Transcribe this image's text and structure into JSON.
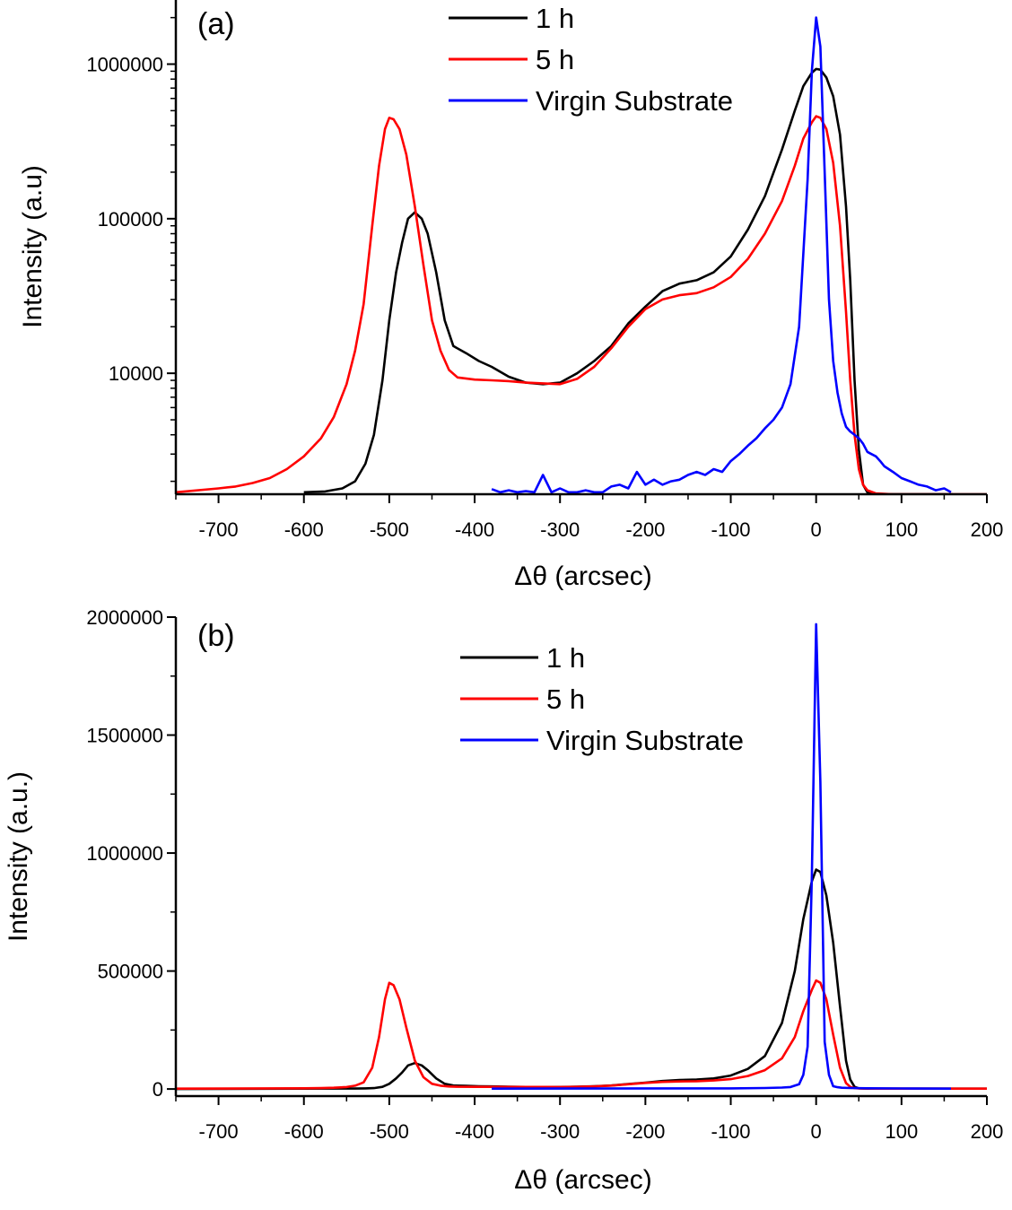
{
  "chart_data": [
    {
      "type": "line",
      "panel_label": "(a)",
      "xlabel": "Δθ (arcsec)",
      "ylabel": "Intensity (a.u)",
      "yscale": "log",
      "xlim": [
        -750,
        200
      ],
      "ylim": [
        1650,
        2600000
      ],
      "xticks": [
        -700,
        -600,
        -500,
        -400,
        -300,
        -200,
        -100,
        0,
        100,
        200
      ],
      "yticks": [
        10000,
        100000,
        1000000
      ],
      "ytick_labels": [
        "10000",
        "100000",
        "1000000"
      ],
      "grid": false,
      "legend_position": "top-center",
      "series": [
        {
          "name": "1 h",
          "color": "#000000",
          "x": [
            -600,
            -575,
            -555,
            -540,
            -528,
            -518,
            -508,
            -500,
            -492,
            -485,
            -478,
            -470,
            -462,
            -455,
            -445,
            -435,
            -425,
            -410,
            -395,
            -380,
            -360,
            -340,
            -320,
            -300,
            -280,
            -260,
            -240,
            -220,
            -200,
            -180,
            -160,
            -140,
            -120,
            -100,
            -80,
            -60,
            -40,
            -25,
            -15,
            -5,
            0,
            5,
            12,
            20,
            28,
            35,
            40,
            45,
            50,
            55,
            60,
            70,
            90,
            110,
            130,
            160
          ],
          "y": [
            1700,
            1720,
            1800,
            2000,
            2600,
            4000,
            9000,
            22000,
            45000,
            70000,
            100000,
            110000,
            100000,
            80000,
            45000,
            22000,
            15000,
            13500,
            12000,
            11000,
            9500,
            8700,
            8500,
            8700,
            10000,
            12000,
            15000,
            21000,
            27000,
            34000,
            38000,
            40000,
            45000,
            57000,
            85000,
            140000,
            280000,
            500000,
            720000,
            880000,
            930000,
            920000,
            820000,
            620000,
            350000,
            120000,
            40000,
            9000,
            3200,
            1900,
            1700,
            1650,
            1650,
            1650,
            1650,
            1650
          ]
        },
        {
          "name": "5 h",
          "color": "#ff0000",
          "x": [
            -750,
            -700,
            -680,
            -660,
            -640,
            -620,
            -600,
            -580,
            -565,
            -550,
            -540,
            -530,
            -520,
            -512,
            -505,
            -500,
            -495,
            -488,
            -480,
            -470,
            -460,
            -450,
            -440,
            -430,
            -420,
            -400,
            -380,
            -360,
            -340,
            -320,
            -300,
            -280,
            -260,
            -240,
            -220,
            -200,
            -180,
            -160,
            -140,
            -120,
            -100,
            -80,
            -60,
            -40,
            -25,
            -15,
            -5,
            0,
            5,
            12,
            20,
            28,
            35,
            40,
            45,
            50,
            55,
            60,
            70,
            90,
            110,
            130,
            160,
            200
          ],
          "y": [
            1700,
            1800,
            1850,
            1950,
            2100,
            2400,
            2900,
            3800,
            5200,
            8500,
            14000,
            28000,
            90000,
            220000,
            380000,
            450000,
            440000,
            380000,
            260000,
            120000,
            50000,
            22000,
            14000,
            10500,
            9400,
            9100,
            9000,
            8900,
            8700,
            8600,
            8500,
            9200,
            11000,
            14500,
            20000,
            26000,
            30000,
            32000,
            33000,
            36000,
            42000,
            55000,
            80000,
            130000,
            220000,
            330000,
            420000,
            460000,
            450000,
            380000,
            230000,
            90000,
            25000,
            9000,
            4000,
            2400,
            1900,
            1750,
            1670,
            1650,
            1650,
            1650,
            1650,
            1650
          ]
        },
        {
          "name": "Virgin Substrate",
          "color": "#0000ff",
          "x": [
            -380,
            -370,
            -360,
            -350,
            -340,
            -330,
            -320,
            -310,
            -300,
            -290,
            -280,
            -270,
            -260,
            -250,
            -240,
            -230,
            -220,
            -210,
            -200,
            -190,
            -180,
            -170,
            -160,
            -150,
            -140,
            -130,
            -120,
            -110,
            -100,
            -90,
            -80,
            -70,
            -60,
            -50,
            -40,
            -30,
            -20,
            -10,
            -5,
            0,
            5,
            10,
            15,
            20,
            25,
            30,
            35,
            40,
            45,
            50,
            55,
            60,
            65,
            70,
            75,
            80,
            90,
            100,
            110,
            120,
            130,
            140,
            150,
            158
          ],
          "y": [
            1780,
            1700,
            1750,
            1700,
            1730,
            1700,
            2200,
            1700,
            1800,
            1700,
            1700,
            1750,
            1700,
            1700,
            1850,
            1900,
            1800,
            2300,
            1900,
            2050,
            1900,
            2000,
            2050,
            2200,
            2300,
            2200,
            2400,
            2300,
            2700,
            3000,
            3400,
            3800,
            4400,
            5000,
            6000,
            8500,
            20000,
            180000,
            900000,
            2000000,
            1300000,
            200000,
            30000,
            12000,
            7500,
            5500,
            4500,
            4200,
            4000,
            3800,
            3500,
            3100,
            3000,
            2900,
            2700,
            2500,
            2300,
            2100,
            2000,
            1900,
            1850,
            1750,
            1800,
            1700
          ]
        }
      ]
    },
    {
      "type": "line",
      "panel_label": "(b)",
      "xlabel": "Δθ (arcsec)",
      "ylabel": "Intensity (a.u.)",
      "yscale": "linear",
      "xlim": [
        -750,
        200
      ],
      "ylim": [
        -30000,
        2000000
      ],
      "xticks": [
        -700,
        -600,
        -500,
        -400,
        -300,
        -200,
        -100,
        0,
        100,
        200
      ],
      "yticks": [
        0,
        500000,
        1000000,
        1500000,
        2000000
      ],
      "ytick_labels": [
        "0",
        "500000",
        "1000000",
        "1500000",
        "2000000"
      ],
      "grid": false,
      "legend_position": "top-center",
      "series": [
        {
          "name": "1 h",
          "color": "#000000",
          "x": [
            -750,
            -600,
            -560,
            -540,
            -528,
            -518,
            -508,
            -500,
            -492,
            -485,
            -478,
            -470,
            -462,
            -455,
            -445,
            -435,
            -425,
            -410,
            -395,
            -380,
            -360,
            -340,
            -320,
            -300,
            -280,
            -260,
            -240,
            -220,
            -200,
            -180,
            -160,
            -140,
            -120,
            -100,
            -80,
            -60,
            -40,
            -25,
            -15,
            -5,
            0,
            5,
            12,
            20,
            28,
            35,
            40,
            45,
            50,
            55,
            60,
            70,
            90,
            200
          ],
          "y": [
            0,
            1700,
            1750,
            2000,
            2600,
            4000,
            9000,
            22000,
            45000,
            70000,
            100000,
            110000,
            100000,
            80000,
            45000,
            22000,
            15000,
            13500,
            12000,
            11000,
            9500,
            8700,
            8500,
            8700,
            10000,
            12000,
            15000,
            21000,
            27000,
            34000,
            38000,
            40000,
            45000,
            57000,
            85000,
            140000,
            280000,
            500000,
            720000,
            880000,
            930000,
            920000,
            820000,
            620000,
            350000,
            120000,
            40000,
            9000,
            3200,
            1900,
            1700,
            1650,
            1650,
            1650
          ]
        },
        {
          "name": "5 h",
          "color": "#ff0000",
          "x": [
            -750,
            -600,
            -580,
            -565,
            -550,
            -540,
            -530,
            -520,
            -512,
            -505,
            -500,
            -495,
            -488,
            -480,
            -470,
            -460,
            -450,
            -440,
            -430,
            -420,
            -400,
            -380,
            -360,
            -340,
            -320,
            -300,
            -280,
            -260,
            -240,
            -220,
            -200,
            -180,
            -160,
            -140,
            -120,
            -100,
            -80,
            -60,
            -40,
            -25,
            -15,
            -5,
            0,
            5,
            12,
            20,
            28,
            35,
            40,
            45,
            50,
            55,
            60,
            70,
            90,
            200
          ],
          "y": [
            1700,
            2900,
            3800,
            5200,
            8500,
            14000,
            28000,
            90000,
            220000,
            380000,
            450000,
            440000,
            380000,
            260000,
            120000,
            50000,
            22000,
            14000,
            10500,
            9400,
            9100,
            9000,
            8900,
            8700,
            8600,
            8500,
            9200,
            11000,
            14500,
            20000,
            26000,
            30000,
            32000,
            33000,
            36000,
            42000,
            55000,
            80000,
            130000,
            220000,
            330000,
            420000,
            460000,
            450000,
            380000,
            230000,
            90000,
            25000,
            9000,
            4000,
            2400,
            1900,
            1750,
            1670,
            1650,
            1650
          ]
        },
        {
          "name": "Virgin Substrate",
          "color": "#0000ff",
          "x": [
            -380,
            -100,
            -60,
            -40,
            -30,
            -20,
            -15,
            -10,
            -5,
            0,
            5,
            10,
            15,
            20,
            25,
            30,
            40,
            60,
            100,
            158
          ],
          "y": [
            1700,
            2700,
            4400,
            6000,
            8500,
            20000,
            60000,
            180000,
            900000,
            1970000,
            1300000,
            200000,
            60000,
            12000,
            7500,
            5500,
            4200,
            3100,
            2300,
            1700
          ]
        }
      ]
    }
  ]
}
